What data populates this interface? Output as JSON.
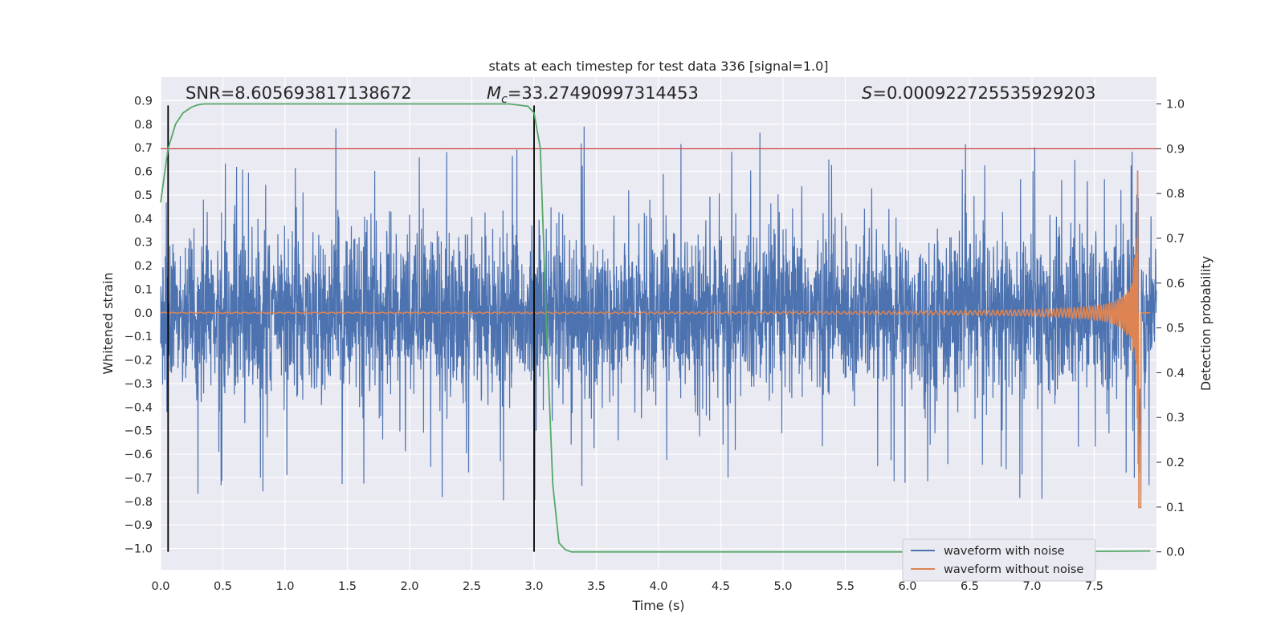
{
  "chart_data": {
    "type": "line",
    "title": "stats at each timestep for test data 336 [signal=1.0]",
    "xlabel": "Time (s)",
    "ylabel": "Whitened strain",
    "y2label": "Detection probability",
    "xlim": [
      0.0,
      8.0
    ],
    "ylim": [
      -1.09,
      1.0
    ],
    "y2lim": [
      -0.04,
      1.06
    ],
    "xticks": [
      "0.0",
      "0.5",
      "1.0",
      "1.5",
      "2.0",
      "2.5",
      "3.0",
      "3.5",
      "4.0",
      "4.5",
      "5.0",
      "5.5",
      "6.0",
      "6.5",
      "7.0",
      "7.5"
    ],
    "yticks": [
      "0.9",
      "0.8",
      "0.7",
      "0.6",
      "0.5",
      "0.4",
      "0.3",
      "0.2",
      "0.1",
      "0.0",
      "-0.1",
      "-0.2",
      "-0.3",
      "-0.4",
      "-0.5",
      "-0.6",
      "-0.7",
      "-0.8",
      "-0.9",
      "-1.0"
    ],
    "y2ticks": [
      "1.0",
      "0.9",
      "0.8",
      "0.7",
      "0.6",
      "0.5",
      "0.4",
      "0.3",
      "0.2",
      "0.1",
      "0.0"
    ],
    "stats": {
      "snr": "SNR=8.605693817138672",
      "mc_symbol": "M",
      "mc_sub": "c",
      "mc_value": "=33.27490997314453",
      "s_symbol": "S",
      "s_value": "=0.000922725535929203"
    },
    "threshold": 0.9,
    "detection_window": [
      0.06,
      3.0
    ],
    "series": [
      {
        "name": "waveform with noise",
        "color": "#4c72b0",
        "description": "whitened noisy strain, amplitude mostly within ±0.5 with spikes up to ~0.88 and down to ~-0.98"
      },
      {
        "name": "waveform without noise",
        "color": "#dd8452",
        "description": "chirp signal, growing from ~0 near 3.0 s to peak ~0.87 / -0.97 at ~7.85 s"
      },
      {
        "name": "detection probability",
        "color": "#55a868",
        "x": [
          0.0,
          0.06,
          0.12,
          0.18,
          0.25,
          0.3,
          0.35,
          0.5,
          1.0,
          2.0,
          2.8,
          2.95,
          3.0,
          3.05,
          3.1,
          3.15,
          3.2,
          3.25,
          3.3,
          4.0,
          5.0,
          6.0,
          7.0,
          7.95
        ],
        "values": [
          0.78,
          0.9,
          0.955,
          0.98,
          0.993,
          0.998,
          1.0,
          1.0,
          1.0,
          1.0,
          1.0,
          0.995,
          0.98,
          0.9,
          0.5,
          0.15,
          0.02,
          0.005,
          0.0,
          0.0,
          0.0,
          0.0,
          0.0,
          0.002
        ]
      }
    ],
    "legend": {
      "position": "lower right",
      "entries": [
        "waveform with noise",
        "waveform without noise"
      ]
    },
    "colors": {
      "background": "#eaeaf2",
      "grid": "#ffffff",
      "threshold_line": "#c44e52",
      "window_line": "#000000"
    }
  }
}
